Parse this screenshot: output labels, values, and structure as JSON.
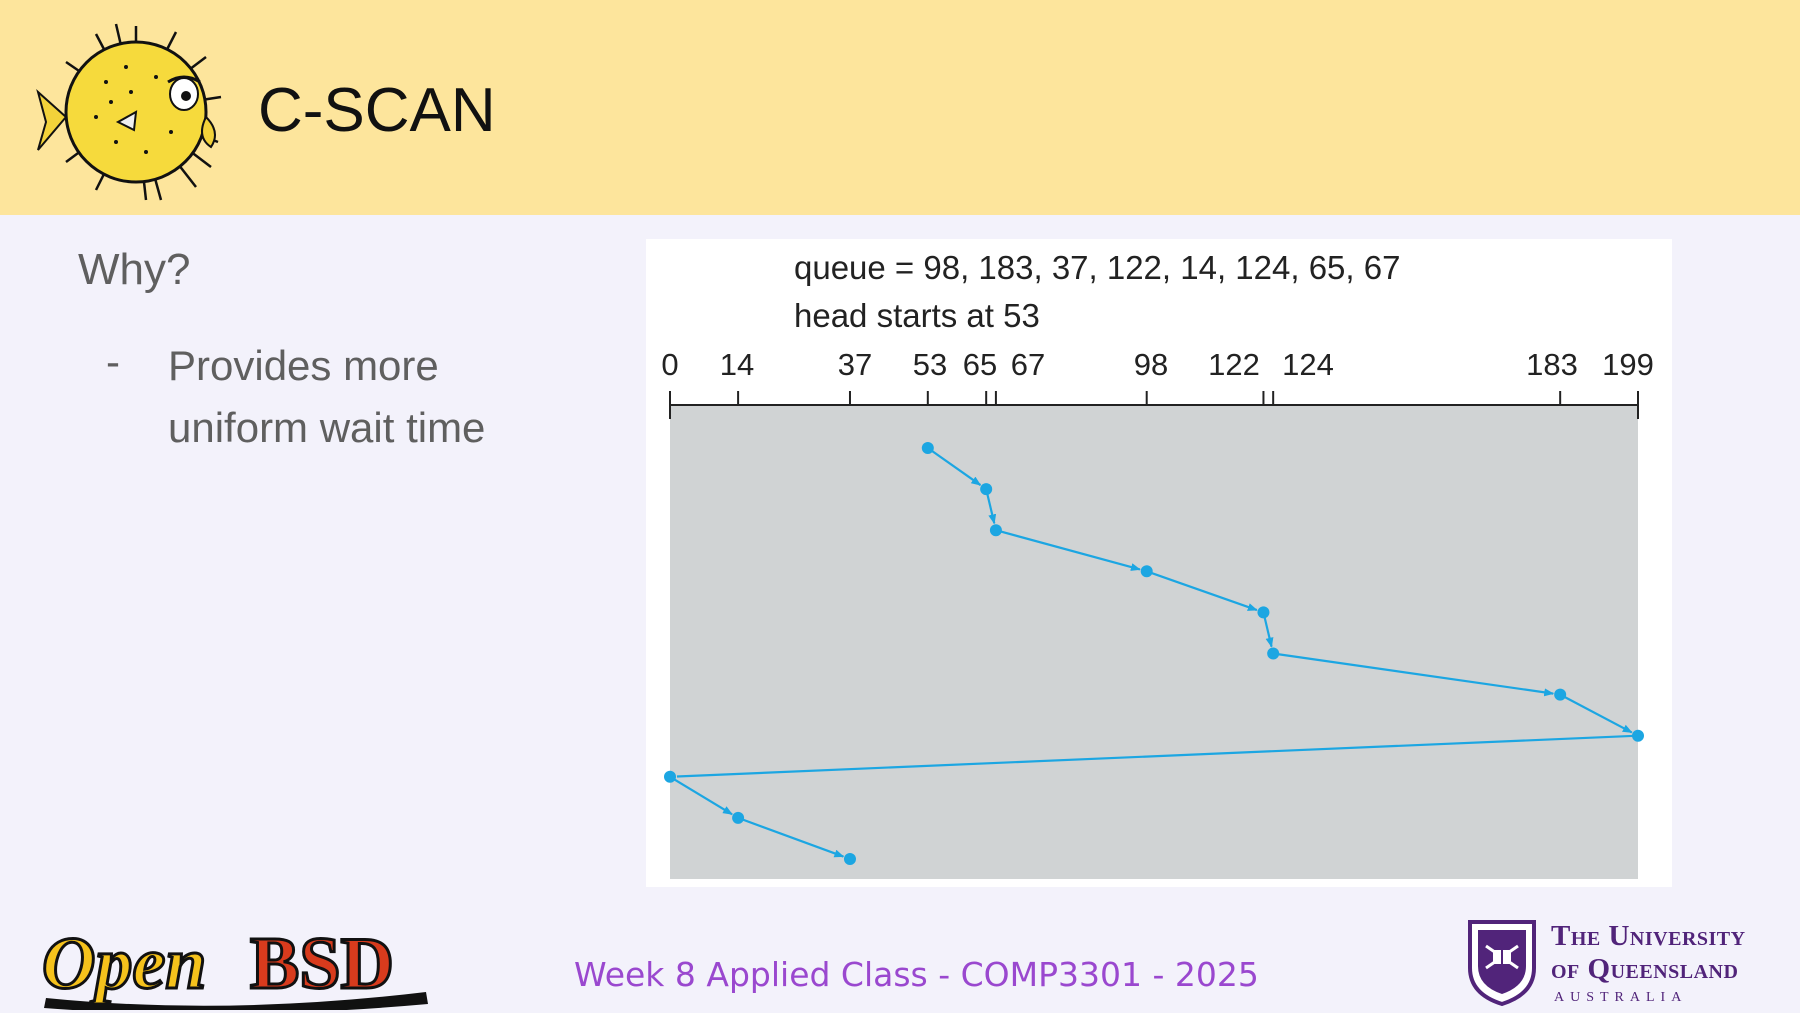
{
  "slide": {
    "title": "C-SCAN",
    "heading": "Why?",
    "bullet_marker": "-",
    "bullet_text": "Provides more uniform wait time",
    "footer": "Week 8 Applied Class - COMP3301 - 2025"
  },
  "diagram": {
    "queue_line": "queue = 98, 183, 37, 122, 14, 124, 65, 67",
    "head_line": "head starts at 53",
    "axis_min": 0,
    "axis_max": 199,
    "tick_labels": [
      0,
      14,
      37,
      53,
      65,
      67,
      98,
      122,
      124,
      183,
      199
    ],
    "path": [
      53,
      65,
      67,
      98,
      122,
      124,
      183,
      199,
      0,
      14,
      37
    ],
    "colors": {
      "path": "#1ca6e2",
      "panel": "#d0d3d4"
    }
  },
  "logos": {
    "openbsd": "OpenBSD",
    "uq_line1": "The University",
    "uq_line2": "of Queensland",
    "uq_line3": "AUSTRALIA"
  }
}
